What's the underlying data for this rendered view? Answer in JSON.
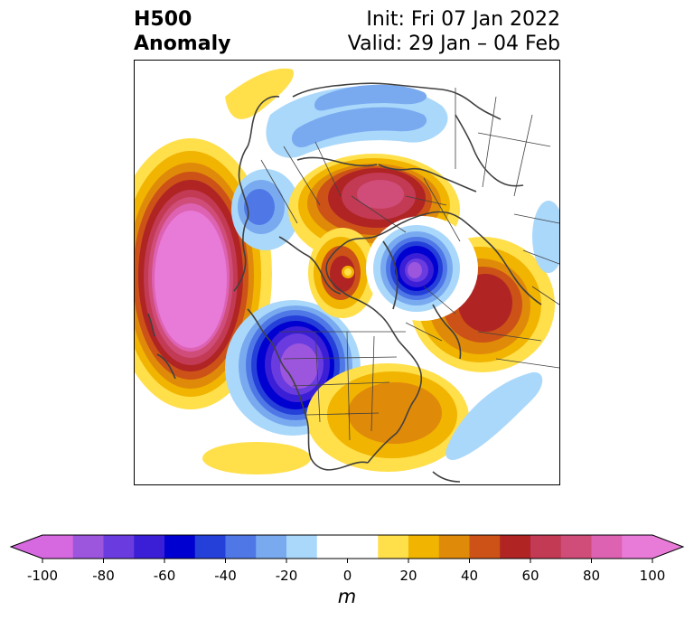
{
  "title": {
    "left_line1": "H500",
    "left_line2": "Anomaly",
    "right_line1": "Init: Fri 07 Jan 2022",
    "right_line2": "Valid: 29 Jan – 04 Feb"
  },
  "colorbar": {
    "units": "m",
    "min": -100,
    "max": 100,
    "ticks": [
      "-100",
      "-80",
      "-60",
      "-40",
      "-20",
      "0",
      "20",
      "40",
      "60",
      "80",
      "100"
    ],
    "colors": [
      "#d668e0",
      "#9c55dd",
      "#6a3ce0",
      "#3a1fd6",
      "#0000d0",
      "#2540d9",
      "#4f78e6",
      "#79aaf0",
      "#aad8fb",
      "#ffffff",
      "#ffffff",
      "#ffdf4a",
      "#f1b400",
      "#e08a0a",
      "#cc5217",
      "#b02424",
      "#c33a55",
      "#cf4d78",
      "#dd62b2",
      "#e87ad8"
    ],
    "under_color": "#d668e0",
    "over_color": "#e87ad8"
  },
  "map": {
    "projection": "polar stereographic (north)",
    "features": [
      "coastlines",
      "country borders",
      "state/province borders"
    ],
    "anomaly_centers": [
      {
        "region": "NE Pacific / Gulf of Alaska",
        "sign": "positive",
        "peak_m": 100
      },
      {
        "region": "Central North America",
        "sign": "negative",
        "peak_m": -90
      },
      {
        "region": "Siberia",
        "sign": "positive",
        "peak_m": 70
      },
      {
        "region": "Kara Sea / N Scandinavia",
        "sign": "negative",
        "peak_m": -80
      },
      {
        "region": "Central Asia / Urals",
        "sign": "positive",
        "peak_m": 60
      },
      {
        "region": "Western North America",
        "sign": "negative",
        "peak_m": -50
      },
      {
        "region": "Eastern US / Atlantic",
        "sign": "positive",
        "peak_m": 50
      },
      {
        "region": "Greenland",
        "sign": "positive",
        "peak_m": 50
      },
      {
        "region": "North Atlantic",
        "sign": "negative",
        "peak_m": -20
      }
    ]
  }
}
